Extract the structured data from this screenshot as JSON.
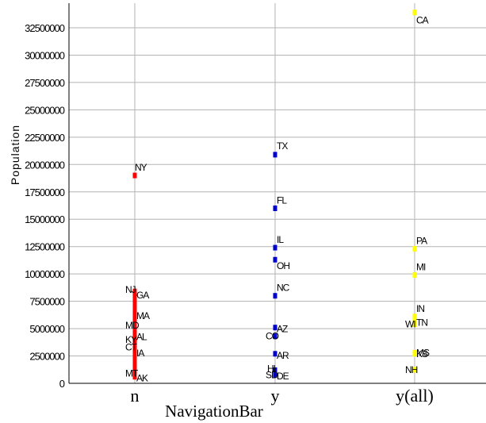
{
  "chart_data": {
    "type": "scatter",
    "xlabel": "NavigationBar",
    "ylabel": "Population",
    "categories": [
      "n",
      "y",
      "y(all)"
    ],
    "y_ticks": [
      0,
      2500000,
      5000000,
      7500000,
      10000000,
      12500000,
      15000000,
      17500000,
      20000000,
      22500000,
      25000000,
      27500000,
      30000000,
      32500000
    ],
    "y_tick_labels": [
      "0",
      "2500000",
      "5000000",
      "7500000",
      "10000000",
      "12500000",
      "15000000",
      "17500000",
      "20000000",
      "22500000",
      "25000000",
      "27500000",
      "30000000",
      "32500000"
    ],
    "ylim": [
      0,
      35800000
    ],
    "grid": true,
    "series": [
      {
        "category": "n",
        "color": "#ff0000",
        "points": [
          {
            "label": "NY",
            "value": 19000000
          },
          {
            "label": "NJ",
            "value": 8400000
          },
          {
            "label": "GA",
            "value": 8200000
          },
          {
            "label": "MA",
            "value": 6300000
          },
          {
            "label": "MD",
            "value": 5300000
          },
          {
            "label": "AL",
            "value": 4400000
          },
          {
            "label": "KY",
            "value": 4000000
          },
          {
            "label": "IA",
            "value": 2900000
          },
          {
            "label": "CT",
            "value": 3300000
          },
          {
            "label": "AK",
            "value": 600000
          },
          {
            "label": "MT",
            "value": 900000
          }
        ]
      },
      {
        "category": "y",
        "color": "#0000cc",
        "points": [
          {
            "label": "TX",
            "value": 20900000
          },
          {
            "label": "FL",
            "value": 16000000
          },
          {
            "label": "IL",
            "value": 12400000
          },
          {
            "label": "OH",
            "value": 11300000
          },
          {
            "label": "NC",
            "value": 8000000
          },
          {
            "label": "AZ",
            "value": 5100000
          },
          {
            "label": "SD",
            "value": 750000
          },
          {
            "label": "AR",
            "value": 2700000
          },
          {
            "label": "CO",
            "value": 4300000
          },
          {
            "label": "DE",
            "value": 780000
          },
          {
            "label": "HI",
            "value": 1200000
          }
        ]
      },
      {
        "category": "y(all)",
        "color": "#ffff00",
        "points": [
          {
            "label": "CA",
            "value": 33900000
          },
          {
            "label": "PA",
            "value": 12300000
          },
          {
            "label": "MI",
            "value": 9900000
          },
          {
            "label": "IN",
            "value": 6100000
          },
          {
            "label": "TN",
            "value": 5700000
          },
          {
            "label": "WI",
            "value": 5400000
          },
          {
            "label": "KS",
            "value": 2700000
          },
          {
            "label": "NH",
            "value": 1240000
          },
          {
            "label": "MS",
            "value": 2800000
          }
        ]
      }
    ]
  }
}
